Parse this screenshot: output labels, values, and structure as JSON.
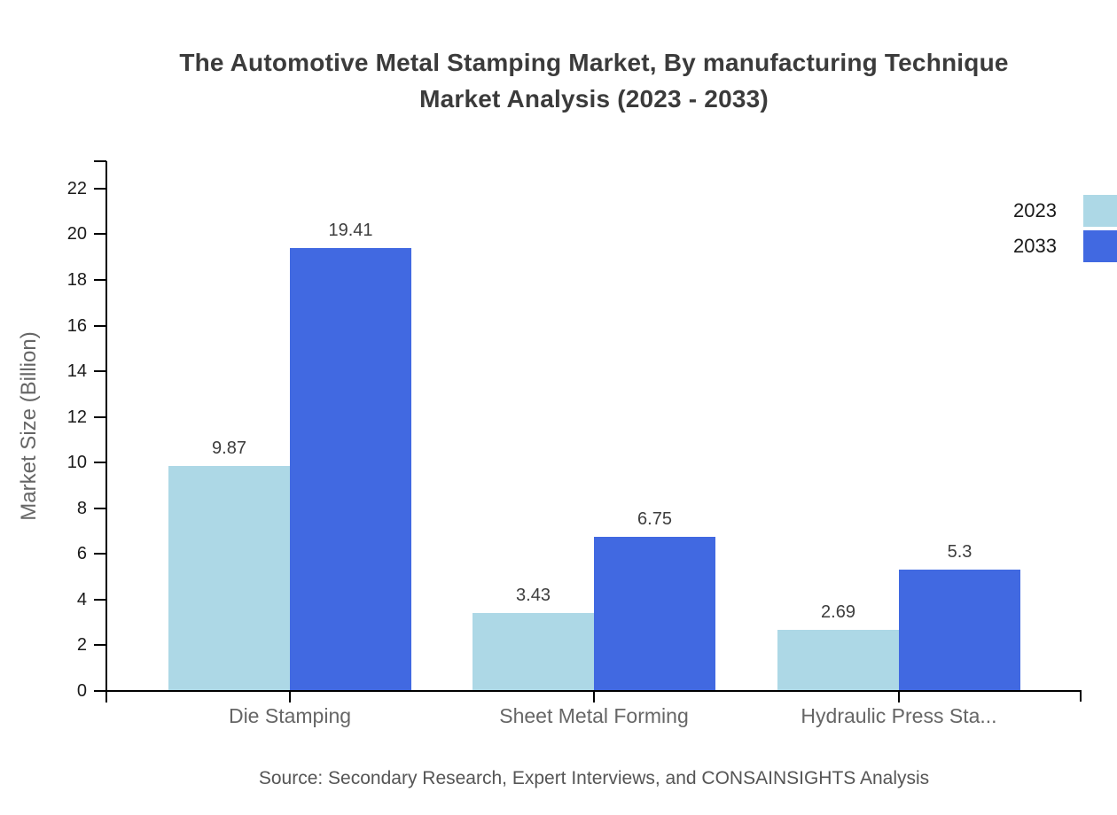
{
  "header": {
    "title_line1": "The Automotive Metal Stamping Market, By manufacturing Technique",
    "title_line2": "Market Analysis (2023 - 2033)"
  },
  "chart_data": {
    "type": "bar",
    "title": "The Automotive Metal Stamping Market, By manufacturing Technique Market Analysis (2023 - 2033)",
    "categories": [
      "Die Stamping",
      "Sheet Metal Forming",
      "Hydraulic Press Sta..."
    ],
    "series": [
      {
        "name": "2023",
        "color": "#ADD8E6",
        "values": [
          9.87,
          3.43,
          2.69
        ]
      },
      {
        "name": "2033",
        "color": "#4169E1",
        "values": [
          19.41,
          6.75,
          5.3
        ]
      }
    ],
    "xlabel": "",
    "ylabel": "Market Size (Billion)",
    "ylim": [
      0,
      23.2
    ],
    "yticks": [
      0,
      2,
      4,
      6,
      8,
      10,
      12,
      14,
      16,
      18,
      20,
      22
    ],
    "grid": false,
    "legend_position": "top-right",
    "value_labels_shown": true
  },
  "footer": {
    "source": "Source: Secondary Research, Expert Interviews, and CONSAINSIGHTS Analysis"
  }
}
